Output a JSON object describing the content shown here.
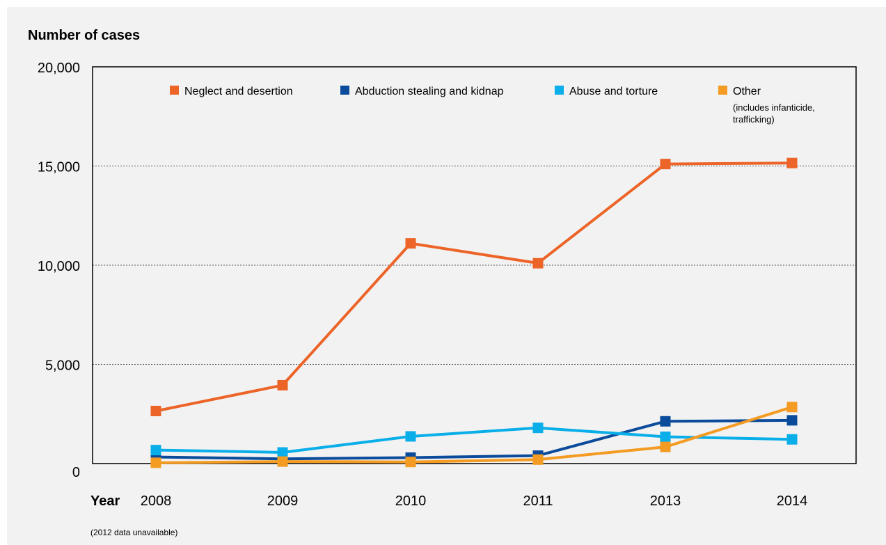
{
  "chart_data": {
    "type": "line",
    "title": "Number of cases",
    "xlabel": "Year",
    "ylabel": "",
    "note": "(2012 data unavailable)",
    "categories": [
      "2008",
      "2009",
      "2010",
      "2011",
      "2013",
      "2014"
    ],
    "ylim": [
      0,
      20000
    ],
    "yticks": [
      0,
      5000,
      10000,
      15000,
      20000
    ],
    "ytick_labels": [
      "0",
      "5,000",
      "10,000",
      "15,000",
      "20,000"
    ],
    "grid": "horizontal dashed at 5,000, 10,000 and 15,000",
    "legend_position": "top",
    "series": [
      {
        "name": "Neglect and desertion",
        "color": "#ec6428",
        "values": [
          2650,
          3950,
          11100,
          10100,
          15100,
          15150
        ]
      },
      {
        "name": "Abduction stealing and kidnap",
        "color": "#0b4b9b",
        "values": [
          330,
          240,
          300,
          400,
          2130,
          2180
        ]
      },
      {
        "name": "Abuse and torture",
        "color": "#0aaee9",
        "values": [
          680,
          560,
          1370,
          1800,
          1350,
          1220
        ]
      },
      {
        "name": "Other",
        "sublabel_lines": [
          "(includes  infanticide,",
          " trafficking)"
        ],
        "color": "#f39b22",
        "values": [
          40,
          100,
          80,
          200,
          840,
          2850
        ]
      }
    ]
  }
}
